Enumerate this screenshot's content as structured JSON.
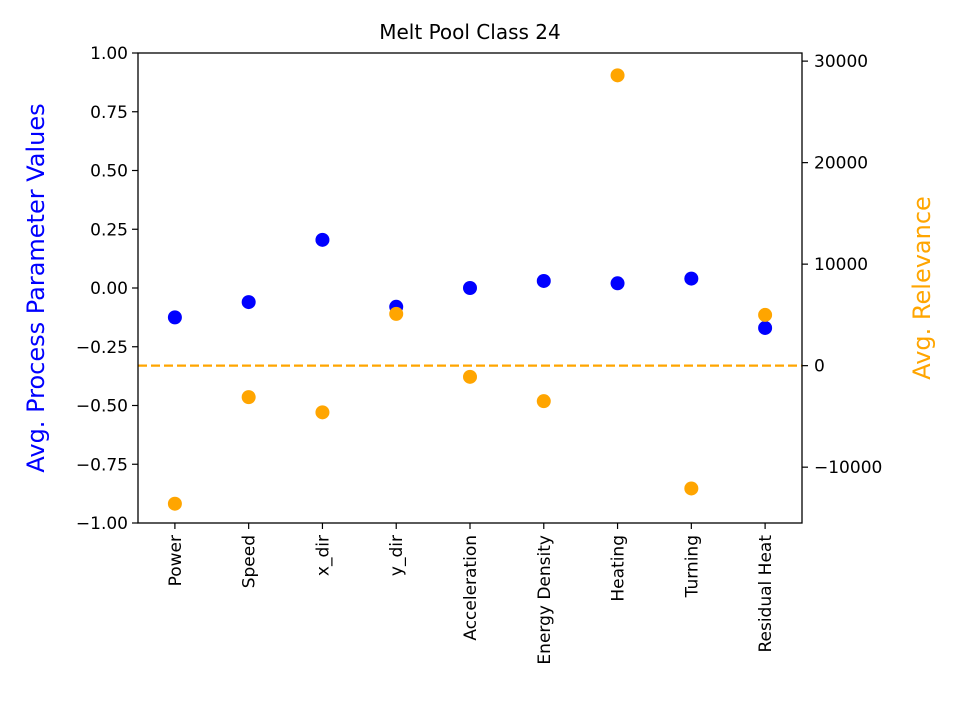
{
  "chart_data": {
    "type": "scatter",
    "title": "Melt Pool Class 24",
    "categories": [
      "Power",
      "Speed",
      "x_dir",
      "y_dir",
      "Acceleration",
      "Energy Density",
      "Heating",
      "Turning",
      "Residual Heat"
    ],
    "left_axis": {
      "label": "Avg. Process Parameter Values",
      "color": "#0000ff",
      "ylim": [
        -1.0,
        1.0
      ],
      "ticks": [
        -1.0,
        -0.75,
        -0.5,
        -0.25,
        0.0,
        0.25,
        0.5,
        0.75,
        1.0
      ],
      "tick_labels": [
        "−1.00",
        "−0.75",
        "−0.50",
        "−0.25",
        "0.00",
        "0.25",
        "0.50",
        "0.75",
        "1.00"
      ]
    },
    "right_axis": {
      "label": "Avg. Relevance",
      "color": "#ffa500",
      "ylim": [
        -15500,
        30800
      ],
      "ticks": [
        -10000,
        0,
        10000,
        20000,
        30000
      ],
      "tick_labels": [
        "−10000",
        "0",
        "10000",
        "20000",
        "30000"
      ],
      "zero_line": {
        "value": 0,
        "style": "dashed",
        "color": "#ffa500"
      }
    },
    "series": [
      {
        "axis": "left",
        "color": "#0000ff",
        "values": [
          -0.125,
          -0.06,
          0.205,
          -0.08,
          0.0,
          0.03,
          0.02,
          0.04,
          -0.17
        ]
      },
      {
        "axis": "right",
        "color": "#ffa500",
        "values": [
          -13600,
          -3100,
          -4600,
          5100,
          -1100,
          -3500,
          28600,
          -12100,
          5000
        ]
      }
    ],
    "grid": false
  }
}
